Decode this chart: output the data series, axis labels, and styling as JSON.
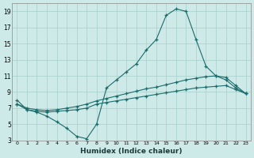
{
  "xlabel": "Humidex (Indice chaleur)",
  "bg_color": "#ceeae8",
  "grid_color": "#add4d0",
  "line_color": "#1a6b6b",
  "xlim": [
    -0.5,
    23.5
  ],
  "ylim": [
    3,
    20
  ],
  "xtick_vals": [
    0,
    1,
    2,
    3,
    4,
    5,
    6,
    7,
    8,
    9,
    10,
    11,
    12,
    13,
    14,
    15,
    16,
    17,
    18,
    19,
    20,
    21,
    22,
    23
  ],
  "xtick_labels": [
    "0",
    "1",
    "2",
    "3",
    "4",
    "5",
    "6",
    "7",
    "8",
    "9",
    "10",
    "11",
    "12",
    "13",
    "14",
    "15",
    "16",
    "17",
    "18",
    "19",
    "20",
    "21",
    "22",
    "23"
  ],
  "ytick_vals": [
    3,
    5,
    7,
    9,
    11,
    13,
    15,
    17,
    19
  ],
  "ytick_labels": [
    "3",
    "5",
    "7",
    "9",
    "11",
    "13",
    "15",
    "17",
    "19"
  ],
  "line1_x": [
    0,
    1,
    2,
    3,
    4,
    5,
    6,
    7,
    8,
    9,
    10,
    11,
    12,
    13,
    14,
    15,
    16,
    17,
    18,
    19,
    20,
    21,
    22,
    23
  ],
  "line1_y": [
    8.0,
    6.8,
    6.5,
    6.0,
    5.3,
    4.5,
    3.5,
    3.2,
    5.0,
    9.5,
    10.5,
    11.5,
    12.5,
    14.2,
    15.5,
    18.5,
    19.3,
    19.0,
    15.5,
    12.2,
    11.0,
    10.5,
    9.5,
    8.8
  ],
  "line2_x": [
    0,
    1,
    2,
    3,
    4,
    5,
    6,
    7,
    8,
    9,
    10,
    11,
    12,
    13,
    14,
    15,
    16,
    17,
    18,
    19,
    20,
    21,
    22,
    23
  ],
  "line2_y": [
    7.5,
    6.8,
    6.6,
    6.5,
    6.6,
    6.7,
    6.8,
    7.0,
    7.5,
    7.7,
    7.9,
    8.1,
    8.3,
    8.5,
    8.7,
    8.9,
    9.1,
    9.3,
    9.5,
    9.6,
    9.7,
    9.8,
    9.3,
    8.8
  ],
  "line3_x": [
    0,
    1,
    2,
    3,
    4,
    5,
    6,
    7,
    8,
    9,
    10,
    11,
    12,
    13,
    14,
    15,
    16,
    17,
    18,
    19,
    20,
    21,
    22,
    23
  ],
  "line3_y": [
    7.5,
    7.0,
    6.8,
    6.7,
    6.8,
    7.0,
    7.2,
    7.5,
    7.9,
    8.2,
    8.5,
    8.8,
    9.1,
    9.4,
    9.6,
    9.9,
    10.2,
    10.5,
    10.7,
    10.9,
    11.0,
    10.8,
    9.8,
    8.8
  ]
}
